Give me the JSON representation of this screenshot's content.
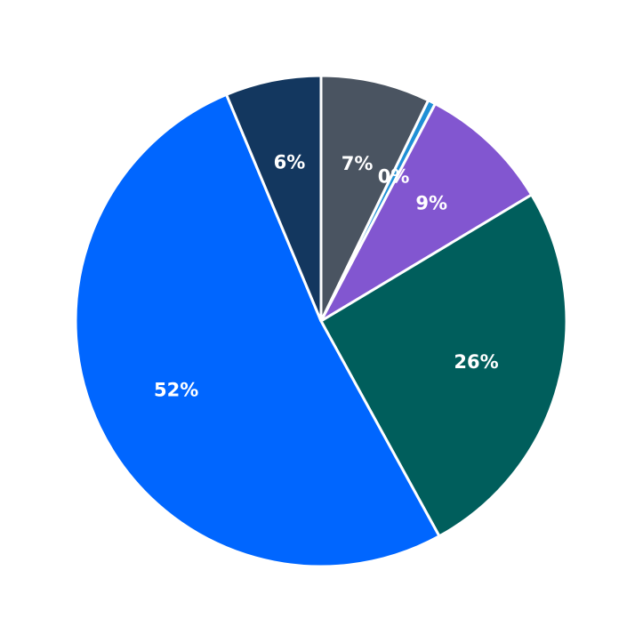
{
  "chart_data": {
    "type": "pie",
    "categories": [
      null,
      null,
      null,
      null,
      null,
      null
    ],
    "values": [
      7.2,
      0.5,
      8.7,
      25.6,
      51.7,
      6.3
    ],
    "value_labels": [
      "7%",
      "0%",
      "9%",
      "26%",
      "52%",
      "6%"
    ],
    "colors": [
      "#4a5461",
      "#1f8fd6",
      "#8256d0",
      "#005e5c",
      "#0066ff",
      "#13375f"
    ]
  }
}
